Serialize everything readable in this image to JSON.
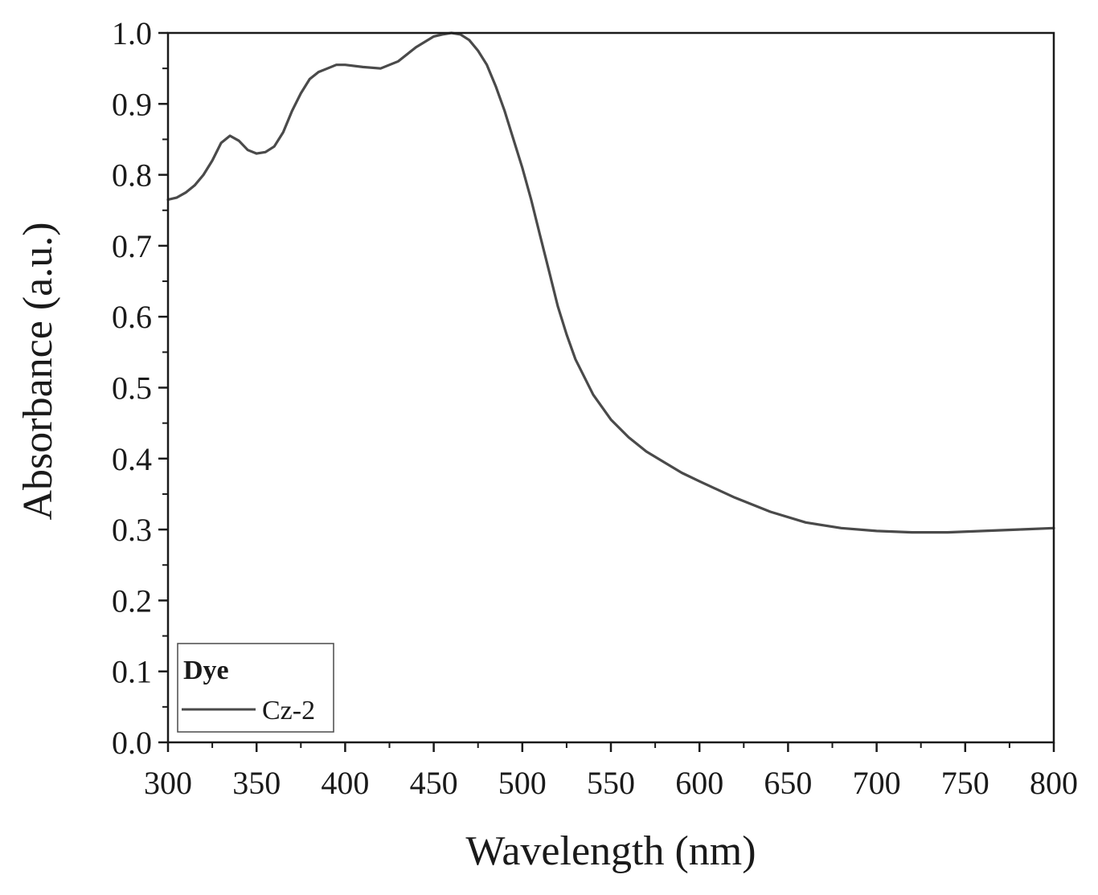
{
  "chart_data": {
    "type": "line",
    "xlabel": "Wavelength (nm)",
    "ylabel": "Absorbance (a.u.)",
    "xlim": [
      300,
      800
    ],
    "ylim": [
      0.0,
      1.0
    ],
    "x_ticks": [
      "300",
      "350",
      "400",
      "450",
      "500",
      "550",
      "600",
      "650",
      "700",
      "750",
      "800"
    ],
    "y_ticks": [
      "0.0",
      "0.1",
      "0.2",
      "0.3",
      "0.4",
      "0.5",
      "0.6",
      "0.7",
      "0.8",
      "0.9",
      "1.0"
    ],
    "grid": false,
    "legend": {
      "title": "Dye",
      "placement": "bottom-left"
    },
    "line_color": "#4a4a4a",
    "series": [
      {
        "name": "Cz-2",
        "x": [
          300,
          305,
          310,
          315,
          320,
          325,
          330,
          335,
          340,
          345,
          350,
          355,
          360,
          365,
          370,
          375,
          380,
          385,
          390,
          395,
          400,
          410,
          420,
          430,
          440,
          450,
          455,
          460,
          465,
          470,
          475,
          480,
          485,
          490,
          495,
          500,
          505,
          510,
          515,
          520,
          525,
          530,
          540,
          550,
          560,
          570,
          580,
          590,
          600,
          620,
          640,
          660,
          680,
          700,
          720,
          740,
          760,
          780,
          800
        ],
        "values": [
          0.765,
          0.768,
          0.775,
          0.785,
          0.8,
          0.82,
          0.845,
          0.855,
          0.848,
          0.835,
          0.83,
          0.832,
          0.84,
          0.86,
          0.89,
          0.915,
          0.935,
          0.945,
          0.95,
          0.955,
          0.955,
          0.952,
          0.95,
          0.96,
          0.98,
          0.995,
          0.998,
          1.0,
          0.998,
          0.99,
          0.975,
          0.955,
          0.925,
          0.89,
          0.85,
          0.81,
          0.765,
          0.715,
          0.665,
          0.615,
          0.575,
          0.54,
          0.49,
          0.455,
          0.43,
          0.41,
          0.395,
          0.38,
          0.368,
          0.345,
          0.325,
          0.31,
          0.302,
          0.298,
          0.296,
          0.296,
          0.298,
          0.3,
          0.302
        ]
      }
    ]
  }
}
